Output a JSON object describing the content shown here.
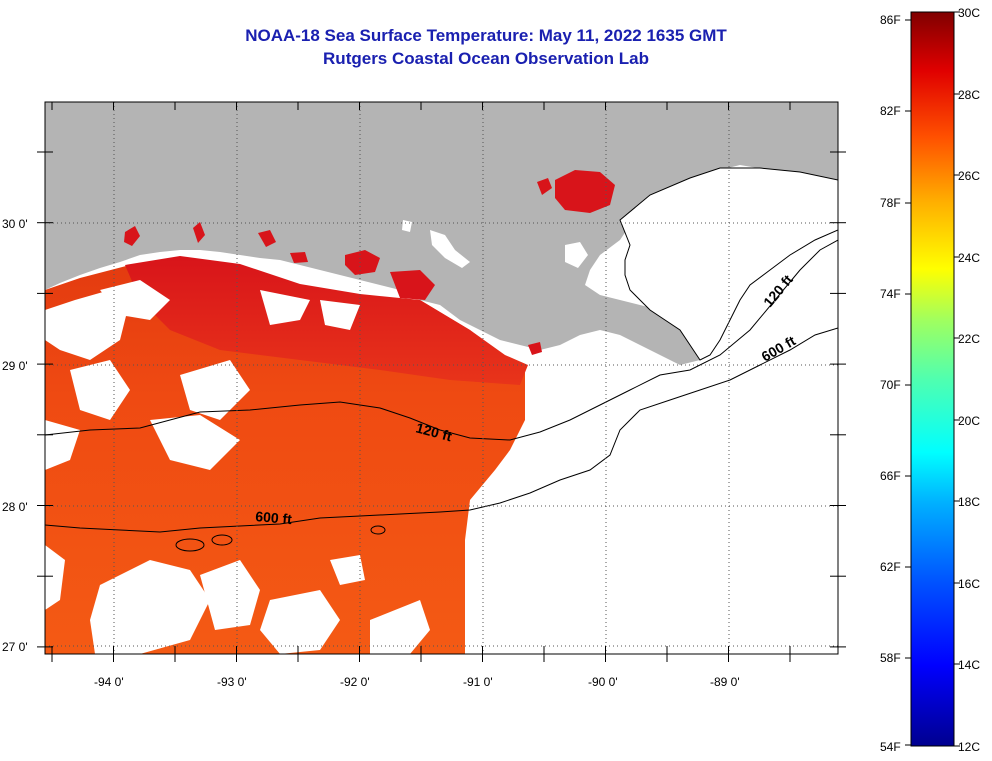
{
  "title": "NOAA-18 Sea Surface Temperature:  May 11, 2022 1635 GMT",
  "subtitle": "Rutgers Coastal Ocean Observation Lab",
  "map": {
    "lat_labels": [
      "30 0'",
      "29 0'",
      "28 0'",
      "27 0'"
    ],
    "lon_labels": [
      "-94 0'",
      "-93 0'",
      "-92 0'",
      "-91 0'",
      "-90 0'",
      "-89 0'"
    ],
    "contour_labels": [
      "120 ft",
      "600 ft",
      "120 ft",
      "600 ft"
    ],
    "colors": {
      "land": "#b4b4b4",
      "cloud": "#ffffff",
      "grid": "#555555"
    }
  },
  "colorbar": {
    "fahrenheit_labels": [
      "86F",
      "82F",
      "78F",
      "74F",
      "70F",
      "66F",
      "62F",
      "58F",
      "54F"
    ],
    "celsius_labels": [
      "30C",
      "28C",
      "26C",
      "24C",
      "22C",
      "20C",
      "18C",
      "16C",
      "14C",
      "12C"
    ],
    "range_c": [
      12,
      30
    ],
    "range_f": [
      54,
      86
    ]
  }
}
